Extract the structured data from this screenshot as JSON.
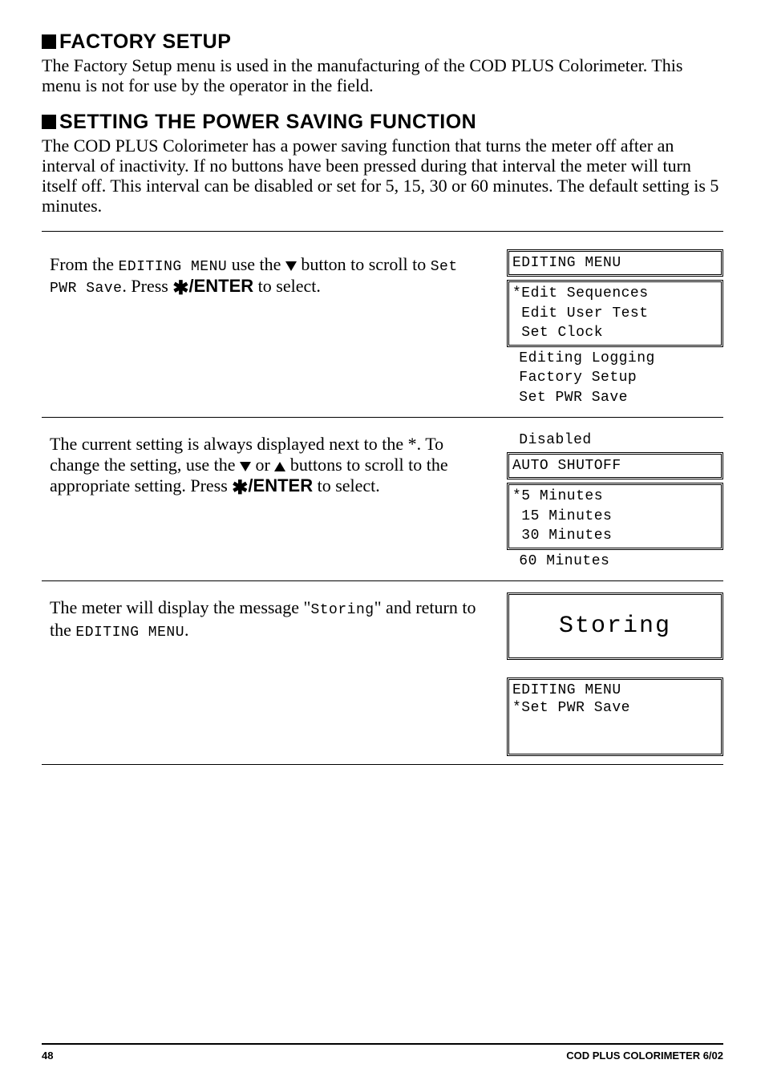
{
  "headings": {
    "factory": "FACTORY SETUP",
    "power": "SETTING THE POWER SAVING FUNCTION"
  },
  "paragraphs": {
    "factory": "The Factory Setup menu is used in the manufacturing of the COD PLUS Colorimeter. This menu is not for use by the operator in the field.",
    "power": "The COD PLUS Colorimeter has a power saving function that turns the meter off after an interval of inactivity. If no buttons have been pressed during that interval the meter will turn itself off. This interval can be disabled or set for 5, 15, 30 or 60 minutes. The default setting is 5 minutes."
  },
  "step1": {
    "text_a": "From the ",
    "lcd_inline_a": "EDITING MENU",
    "text_b": " use the ",
    "text_c": "  button to scroll to ",
    "lcd_inline_b": "Set PWR Save",
    "text_d": ". Press ",
    "enter": "ENTER",
    "text_e": " to select.",
    "menu": {
      "title": "EDITING MENU",
      "boxed": [
        "*Edit Sequences",
        " Edit User Test",
        " Set Clock"
      ],
      "below": [
        " Editing Logging",
        " Factory Setup",
        " Set PWR Save"
      ]
    }
  },
  "step2": {
    "line1": "The current setting is always displayed next to the *. To change the setting, use the ",
    "line2": " or ",
    "line3": " buttons to scroll to the appropriate setting. Press ",
    "enter": "ENTER",
    "line4": " to select.",
    "menu": {
      "above": [
        " Disabled"
      ],
      "title": "AUTO SHUTOFF",
      "boxed": [
        "*5 Minutes",
        " 15 Minutes",
        " 30 Minutes"
      ],
      "below": [
        " 60 Minutes"
      ]
    }
  },
  "step3": {
    "text_a": "The meter will display the message \"",
    "lcd_inline": "Storing",
    "text_b": "\" and return to the ",
    "lcd_inline2": "EDITING MENU",
    "text_c": ".",
    "storing": "Storing",
    "menu2": {
      "title": "EDITING MENU",
      "row": "*Set PWR Save"
    }
  },
  "footer": {
    "page": "48",
    "title": "COD PLUS COLORIMETER  6/02"
  }
}
